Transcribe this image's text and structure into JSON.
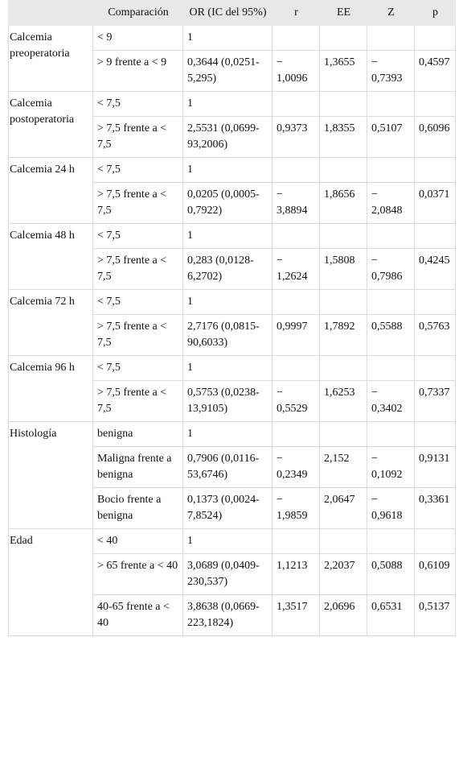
{
  "table": {
    "header": [
      "Comparación",
      "OR (IC del 95%)",
      "r",
      "EE",
      "Z",
      "p"
    ],
    "groups": [
      {
        "label": "Calcemia preoperatoria",
        "rows": [
          [
            "< 9",
            "1"
          ],
          [
            "> 9 frente a < 9",
            "0,3644 (0,0251-5,295)",
            "− 1,0096",
            "1,3655",
            "− 0,7393",
            "0,4597"
          ]
        ]
      },
      {
        "label": "Calcemia postoperatoria",
        "rows": [
          [
            "< 7,5",
            "1"
          ],
          [
            "> 7,5 frente a < 7,5",
            "2,5531 (0,0699-93,2006)",
            "0,9373",
            "1,8355",
            "0,5107",
            "0,6096"
          ]
        ]
      },
      {
        "label": "Calcemia 24 h",
        "rows": [
          [
            "< 7,5",
            "1"
          ],
          [
            "> 7,5 frente a < 7,5",
            "0,0205 (0,0005-0,7922)",
            "− 3,8894",
            "1,8656",
            "− 2,0848",
            "0,0371"
          ]
        ]
      },
      {
        "label": "Calcemia 48 h",
        "rows": [
          [
            "< 7,5",
            "1"
          ],
          [
            "> 7,5 frente a < 7,5",
            "0,283 (0,0128-6,2702)",
            "− 1,2624",
            "1,5808",
            "− 0,7986",
            "0,4245"
          ]
        ]
      },
      {
        "label": "Calcemia 72 h",
        "rows": [
          [
            "< 7,5",
            "1"
          ],
          [
            "> 7,5 frente a < 7,5",
            "2,7176 (0,0815-90,6033)",
            "0,9997",
            "1,7892",
            "0,5588",
            "0,5763"
          ]
        ]
      },
      {
        "label": "Calcemia 96 h",
        "rows": [
          [
            "< 7,5",
            "1"
          ],
          [
            "> 7,5 frente a < 7,5",
            "0,5753 (0,0238-13,9105)",
            "− 0,5529",
            "1,6253",
            "− 0,3402",
            "0,7337"
          ]
        ]
      },
      {
        "label": "Histología",
        "rows": [
          [
            "benigna",
            "1"
          ],
          [
            "Maligna frente a benigna",
            "0,7906 (0,0116-53,6746)",
            "− 0,2349",
            "2,152",
            "− 0,1092",
            "0,9131"
          ],
          [
            "Bocio frente a benigna",
            "0,1373 (0,0024-7,8524)",
            "− 1,9859",
            "2,0647",
            "− 0,9618",
            "0,3361"
          ]
        ]
      },
      {
        "label": "Edad",
        "rows": [
          [
            "< 40",
            "1"
          ],
          [
            "> 65 frente a < 40",
            "3,0689 (0,0409-230,537)",
            "1,1213",
            "2,2037",
            "0,5088",
            "0,6109"
          ],
          [
            "40-65 frente a < 40",
            "3,8638 (0,0669-223,1824)",
            "1,3517",
            "2,0696",
            "0,6531",
            "0,5137"
          ]
        ]
      }
    ]
  }
}
